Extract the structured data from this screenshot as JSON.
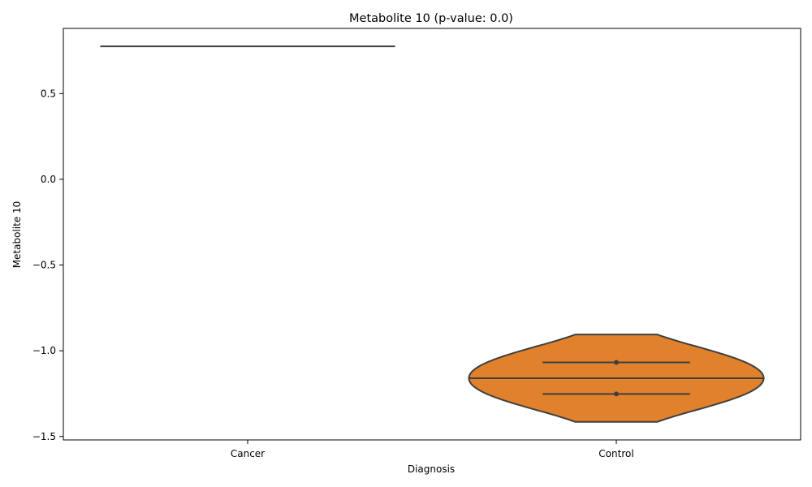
{
  "chart_data": {
    "type": "violin",
    "title": "Metabolite 10 (p-value: 0.0)",
    "xlabel": "Diagnosis",
    "ylabel": "Metabolite 10",
    "categories": [
      "Cancer",
      "Control"
    ],
    "ylim": [
      -1.52,
      0.88
    ],
    "yticks": [
      -1.5,
      -1.0,
      -0.5,
      0.0,
      0.5
    ],
    "ytick_labels": [
      "−1.5",
      "−1.0",
      "−0.5",
      "0.0",
      "0.5"
    ],
    "grid": false,
    "legend": "none",
    "series": [
      {
        "category": "Cancer",
        "color": "#3274a1",
        "values": [
          0.775
        ],
        "median": 0.775
      },
      {
        "category": "Control",
        "color": "#e1812c",
        "values": [
          -1.068,
          -1.252
        ],
        "quartiles": [
          -1.068,
          -1.16,
          -1.252
        ],
        "range": [
          -0.905,
          -1.415
        ]
      }
    ]
  }
}
